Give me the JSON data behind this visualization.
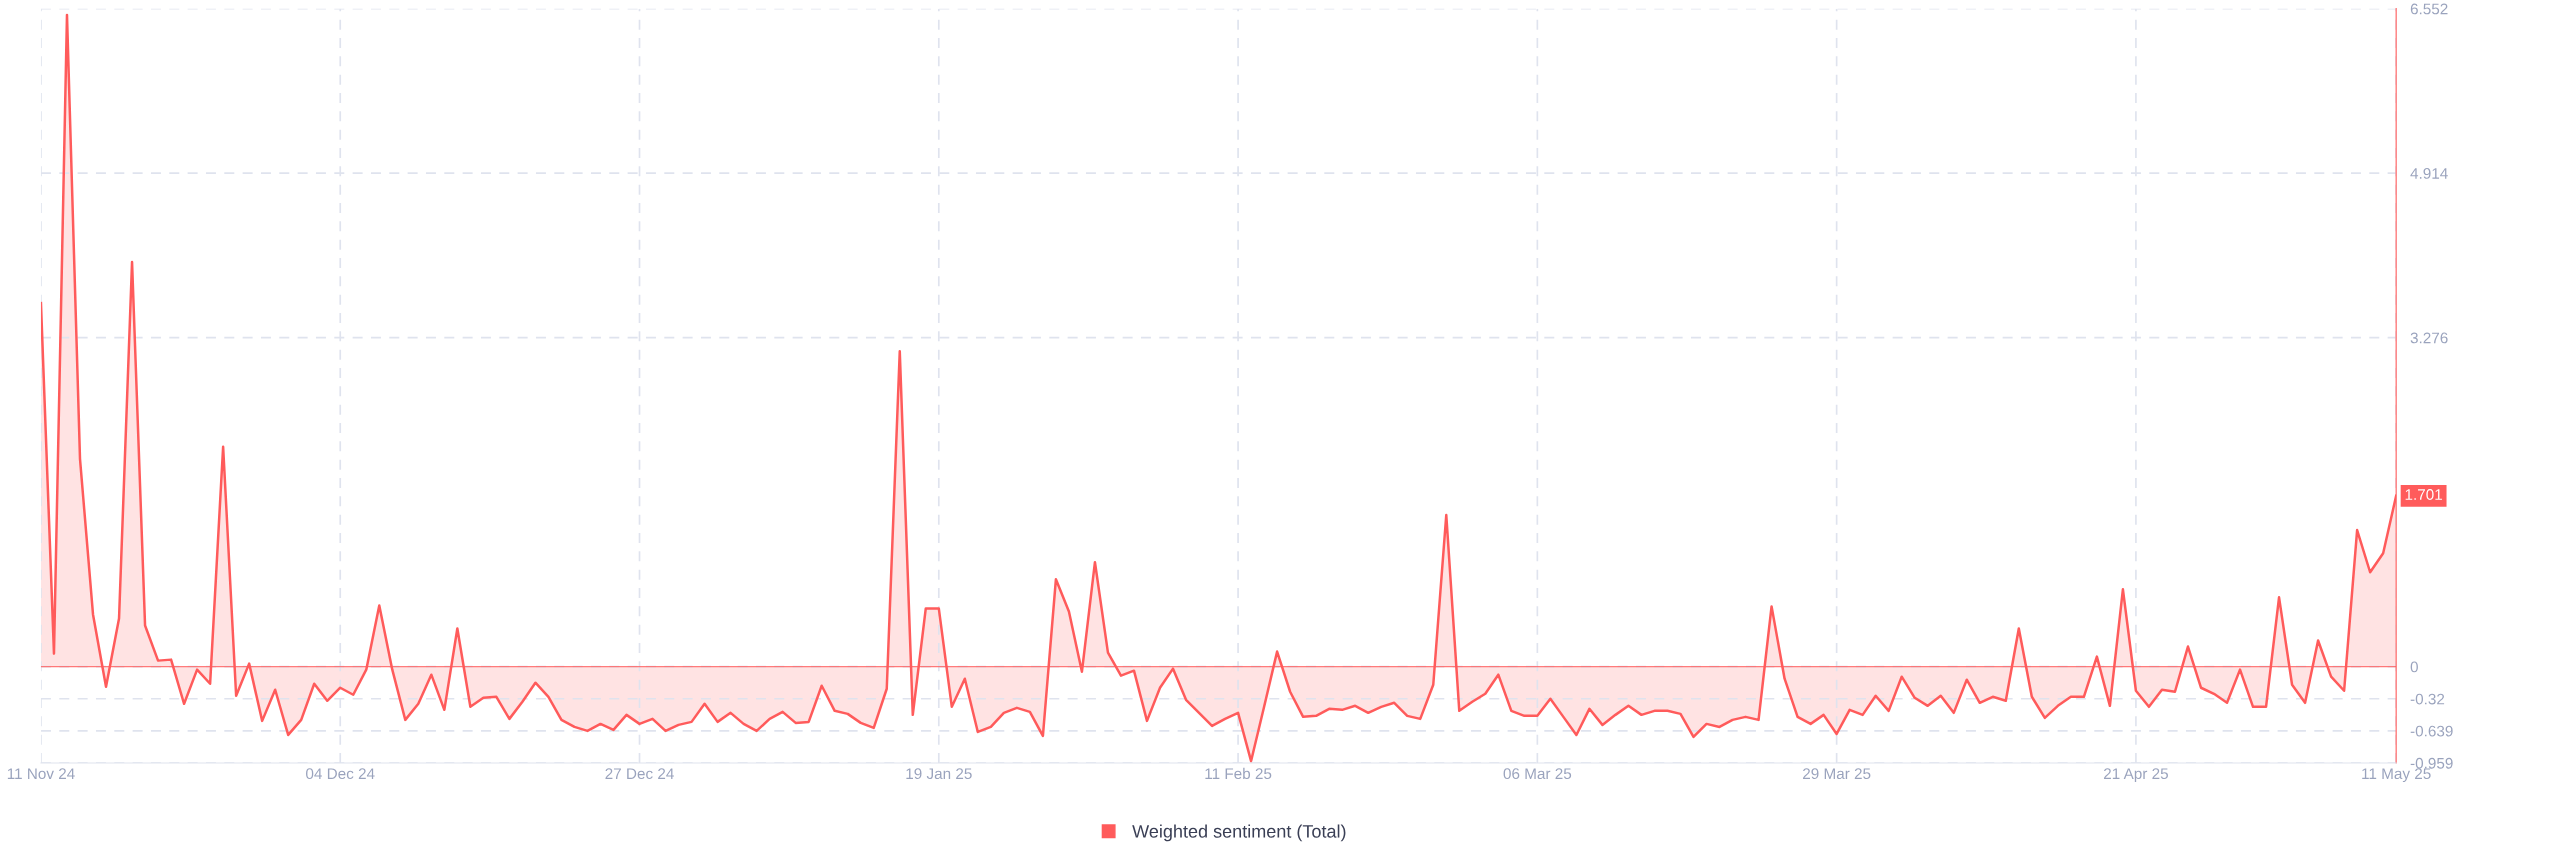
{
  "chart_data": {
    "type": "area",
    "x": [
      "2024-11-11",
      "2024-11-12",
      "2024-11-13",
      "2024-11-14",
      "2024-11-15",
      "2024-11-16",
      "2024-11-17",
      "2024-11-18",
      "2024-11-19",
      "2024-11-20",
      "2024-11-21",
      "2024-11-22",
      "2024-11-23",
      "2024-11-24",
      "2024-11-25",
      "2024-11-26",
      "2024-11-27",
      "2024-11-28",
      "2024-11-29",
      "2024-11-30",
      "2024-12-01",
      "2024-12-02",
      "2024-12-03",
      "2024-12-04",
      "2024-12-05",
      "2024-12-06",
      "2024-12-07",
      "2024-12-08",
      "2024-12-09",
      "2024-12-10",
      "2024-12-11",
      "2024-12-12",
      "2024-12-13",
      "2024-12-14",
      "2024-12-15",
      "2024-12-16",
      "2024-12-17",
      "2024-12-18",
      "2024-12-19",
      "2024-12-20",
      "2024-12-21",
      "2024-12-22",
      "2024-12-23",
      "2024-12-24",
      "2024-12-25",
      "2024-12-26",
      "2024-12-27",
      "2024-12-28",
      "2024-12-29",
      "2024-12-30",
      "2024-12-31",
      "2025-01-01",
      "2025-01-02",
      "2025-01-03",
      "2025-01-04",
      "2025-01-05",
      "2025-01-06",
      "2025-01-07",
      "2025-01-08",
      "2025-01-09",
      "2025-01-10",
      "2025-01-11",
      "2025-01-12",
      "2025-01-13",
      "2025-01-14",
      "2025-01-15",
      "2025-01-16",
      "2025-01-17",
      "2025-01-18",
      "2025-01-19",
      "2025-01-20",
      "2025-01-21",
      "2025-01-22",
      "2025-01-23",
      "2025-01-24",
      "2025-01-25",
      "2025-01-26",
      "2025-01-27",
      "2025-01-28",
      "2025-01-29",
      "2025-01-30",
      "2025-01-31",
      "2025-02-01",
      "2025-02-02",
      "2025-02-03",
      "2025-02-04",
      "2025-02-05",
      "2025-02-06",
      "2025-02-07",
      "2025-02-08",
      "2025-02-09",
      "2025-02-10",
      "2025-02-11",
      "2025-02-12",
      "2025-02-13",
      "2025-02-14",
      "2025-02-15",
      "2025-02-16",
      "2025-02-17",
      "2025-02-18",
      "2025-02-19",
      "2025-02-20",
      "2025-02-21",
      "2025-02-22",
      "2025-02-23",
      "2025-02-24",
      "2025-02-25",
      "2025-02-26",
      "2025-02-27",
      "2025-02-28",
      "2025-03-01",
      "2025-03-02",
      "2025-03-03",
      "2025-03-04",
      "2025-03-05",
      "2025-03-06",
      "2025-03-07",
      "2025-03-08",
      "2025-03-09",
      "2025-03-10",
      "2025-03-11",
      "2025-03-12",
      "2025-03-13",
      "2025-03-14",
      "2025-03-15",
      "2025-03-16",
      "2025-03-17",
      "2025-03-18",
      "2025-03-19",
      "2025-03-20",
      "2025-03-21",
      "2025-03-22",
      "2025-03-23",
      "2025-03-24",
      "2025-03-25",
      "2025-03-26",
      "2025-03-27",
      "2025-03-28",
      "2025-03-29",
      "2025-03-30",
      "2025-03-31",
      "2025-04-01",
      "2025-04-02",
      "2025-04-03",
      "2025-04-04",
      "2025-04-05",
      "2025-04-06",
      "2025-04-07",
      "2025-04-08",
      "2025-04-09",
      "2025-04-10",
      "2025-04-11",
      "2025-04-12",
      "2025-04-13",
      "2025-04-14",
      "2025-04-15",
      "2025-04-16",
      "2025-04-17",
      "2025-04-18",
      "2025-04-19",
      "2025-04-20",
      "2025-04-21",
      "2025-04-22",
      "2025-04-23",
      "2025-04-24",
      "2025-04-25",
      "2025-04-26",
      "2025-04-27",
      "2025-04-28",
      "2025-04-29",
      "2025-04-30",
      "2025-05-01",
      "2025-05-02",
      "2025-05-03",
      "2025-05-04",
      "2025-05-05",
      "2025-05-06",
      "2025-05-07",
      "2025-05-08",
      "2025-05-09",
      "2025-05-10",
      "2025-05-11"
    ],
    "series": [
      {
        "name": "Weighted sentiment (Total)",
        "color": "#ff5b5b",
        "values": [
          3.62,
          0.13,
          6.49,
          2.07,
          0.52,
          -0.2,
          0.48,
          4.03,
          0.41,
          0.06,
          0.07,
          -0.37,
          -0.03,
          -0.17,
          2.19,
          -0.29,
          0.03,
          -0.54,
          -0.23,
          -0.68,
          -0.53,
          -0.17,
          -0.34,
          -0.21,
          -0.28,
          -0.03,
          0.61,
          -0.03,
          -0.53,
          -0.37,
          -0.08,
          -0.43,
          0.38,
          -0.4,
          -0.31,
          -0.3,
          -0.52,
          -0.35,
          -0.16,
          -0.3,
          -0.53,
          -0.6,
          -0.64,
          -0.57,
          -0.63,
          -0.48,
          -0.57,
          -0.52,
          -0.64,
          -0.58,
          -0.55,
          -0.37,
          -0.55,
          -0.46,
          -0.57,
          -0.64,
          -0.52,
          -0.45,
          -0.56,
          -0.55,
          -0.19,
          -0.44,
          -0.47,
          -0.56,
          -0.61,
          -0.22,
          3.14,
          -0.48,
          0.58,
          0.58,
          -0.4,
          -0.12,
          -0.65,
          -0.6,
          -0.46,
          -0.41,
          -0.45,
          -0.69,
          0.87,
          0.55,
          -0.05,
          1.04,
          0.14,
          -0.09,
          -0.04,
          -0.54,
          -0.21,
          -0.02,
          -0.33,
          -0.46,
          -0.59,
          -0.52,
          -0.46,
          -0.94,
          -0.4,
          0.15,
          -0.25,
          -0.5,
          -0.49,
          -0.42,
          -0.43,
          -0.39,
          -0.46,
          -0.4,
          -0.36,
          -0.49,
          -0.52,
          -0.18,
          1.51,
          -0.44,
          -0.35,
          -0.27,
          -0.08,
          -0.44,
          -0.49,
          -0.49,
          -0.32,
          -0.5,
          -0.68,
          -0.42,
          -0.58,
          -0.48,
          -0.39,
          -0.48,
          -0.44,
          -0.44,
          -0.47,
          -0.7,
          -0.57,
          -0.6,
          -0.53,
          -0.5,
          -0.53,
          0.6,
          -0.12,
          -0.5,
          -0.57,
          -0.48,
          -0.67,
          -0.43,
          -0.48,
          -0.29,
          -0.44,
          -0.1,
          -0.31,
          -0.39,
          -0.29,
          -0.46,
          -0.13,
          -0.36,
          -0.3,
          -0.34,
          0.38,
          -0.3,
          -0.51,
          -0.39,
          -0.3,
          -0.3,
          0.1,
          -0.39,
          0.77,
          -0.24,
          -0.4,
          -0.23,
          -0.25,
          0.2,
          -0.21,
          -0.27,
          -0.36,
          -0.03,
          -0.4,
          -0.4,
          0.69,
          -0.18,
          -0.36,
          0.26,
          -0.1,
          -0.24,
          1.36,
          0.94,
          1.13,
          1.701
        ],
        "value_labels": [
          null,
          null,
          null,
          null,
          null,
          null,
          null,
          null,
          null,
          null,
          null,
          null,
          null,
          null,
          null,
          null,
          null,
          null,
          null,
          null,
          null,
          null,
          null,
          null,
          null,
          null,
          null,
          null,
          null,
          null,
          null,
          null,
          null,
          null,
          null,
          null,
          null,
          null,
          null,
          null,
          null,
          null,
          null,
          null,
          null,
          null,
          null,
          null,
          null,
          null,
          null,
          null,
          null,
          null,
          null,
          null,
          null,
          null,
          null,
          null,
          null,
          null,
          null,
          null,
          null,
          null,
          null,
          null,
          null,
          null,
          null,
          null,
          null,
          null,
          null,
          null,
          null,
          null,
          null,
          null,
          null,
          null,
          null,
          null,
          null,
          null,
          null,
          null,
          null,
          null,
          null,
          null,
          null,
          null,
          null,
          null,
          null,
          null,
          null,
          null,
          null,
          null,
          null,
          null,
          null,
          null,
          null,
          null,
          null,
          null,
          null,
          null,
          null,
          null,
          null,
          null,
          null,
          null,
          null,
          null,
          null,
          null,
          null,
          null,
          null,
          null,
          null,
          null,
          null,
          null,
          null,
          null,
          null,
          null,
          null,
          null,
          null,
          null,
          null,
          null,
          null,
          null,
          null,
          null,
          null,
          null,
          null,
          null,
          null,
          null,
          null,
          null,
          null,
          null,
          null,
          null,
          null,
          null,
          null,
          null,
          null,
          null,
          null,
          null,
          null,
          null,
          null,
          null,
          null,
          null,
          null,
          null,
          null,
          null,
          null,
          null,
          null,
          null,
          null,
          null,
          null,
          "1.701"
        ]
      }
    ],
    "ref_lines": [
      {
        "axis": "y",
        "value": 0,
        "color": "#ff5b5b"
      }
    ],
    "xlim": [
      "2024-11-11",
      "2025-05-11"
    ],
    "xticks": [
      {
        "value": "2024-11-11",
        "label": "11 Nov 24"
      },
      {
        "value": "2024-12-04",
        "label": "04 Dec 24"
      },
      {
        "value": "2024-12-27",
        "label": "27 Dec 24"
      },
      {
        "value": "2025-01-19",
        "label": "19 Jan 25"
      },
      {
        "value": "2025-02-11",
        "label": "11 Feb 25"
      },
      {
        "value": "2025-03-06",
        "label": "06 Mar 25"
      },
      {
        "value": "2025-03-29",
        "label": "29 Mar 25"
      },
      {
        "value": "2025-04-21",
        "label": "21 Apr 25"
      },
      {
        "value": "2025-05-11",
        "label": "11 May 25"
      }
    ],
    "ylim": [
      -0.959,
      6.552
    ],
    "yticks": [
      6.552,
      4.914,
      3.276,
      0,
      -0.32,
      -0.639,
      -0.959
    ],
    "grid": true,
    "legend": "bottom"
  }
}
